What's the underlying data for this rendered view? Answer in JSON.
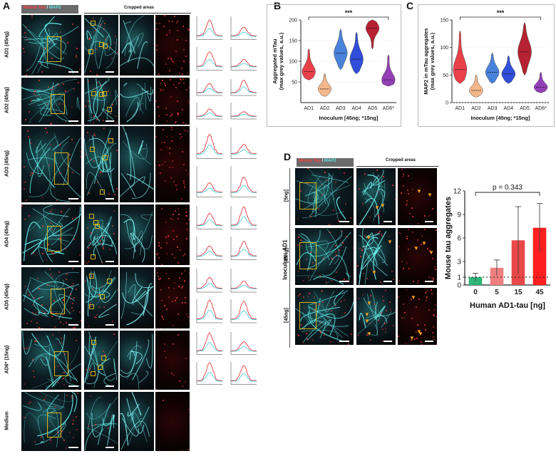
{
  "panels": {
    "A": "A",
    "B": "B",
    "C": "C",
    "D": "D"
  },
  "panelA": {
    "legend": {
      "red": "Mouse Tau",
      "sep": " / ",
      "cyan": "MAP2"
    },
    "cropped_header": "Cropped areas",
    "rows": [
      "AD1 (45ng)",
      "AD2 (45ng)",
      "AD3 (45ng)",
      "AD4 (45ng)",
      "AD5 (45ng)",
      "AD6* (15ng)",
      "Medium"
    ]
  },
  "panelD": {
    "legend": {
      "red": "Mouse Tau",
      "sep": " / ",
      "cyan": "MAP2"
    },
    "cropped_header": "Cropped areas",
    "group_label": "Inoculum: AD1",
    "rows": [
      "[5ng]",
      "[15ng]",
      "[45ng]"
    ]
  },
  "colors": {
    "red": "#e8303a",
    "orange": "#f4b183",
    "blue1": "#3a78d8",
    "blue2": "#1f3fd6",
    "darkred": "#b01020",
    "purple": "#8a2fb0",
    "cyan": "#5fe6e6",
    "green": "#2db57a"
  },
  "chart_data": [
    {
      "type": "violin",
      "ylabel": "Aggregated mTau\n(max grey values, a.u.)",
      "xlabel": "Inoculum [45ng; *15ng]",
      "categories": [
        "AD1",
        "AD2",
        "AD3",
        "AD4",
        "AD5",
        "AD6*"
      ],
      "medians": [
        75,
        33,
        120,
        105,
        180,
        55
      ],
      "ranges": [
        [
          55,
          130
        ],
        [
          15,
          70
        ],
        [
          80,
          178
        ],
        [
          70,
          170
        ],
        [
          130,
          200
        ],
        [
          40,
          115
        ]
      ],
      "ylim": [
        0,
        200
      ],
      "yticks": [
        50,
        100,
        150,
        200
      ],
      "significance": "***"
    },
    {
      "type": "violin",
      "ylabel": "MAP2 in mTau aggregates\n(max grey values, a.u.)",
      "xlabel": "Inoculum [45ng; *15ng]",
      "categories": [
        "AD1",
        "AD2",
        "AD3",
        "AD4",
        "AD5",
        "AD6*"
      ],
      "medians": [
        60,
        22,
        55,
        52,
        92,
        28
      ],
      "ranges": [
        [
          35,
          130
        ],
        [
          10,
          50
        ],
        [
          35,
          90
        ],
        [
          35,
          85
        ],
        [
          50,
          145
        ],
        [
          18,
          55
        ]
      ],
      "ylim": [
        0,
        150
      ],
      "yticks": [
        0,
        50,
        100,
        150
      ],
      "significance": "***"
    },
    {
      "type": "bar",
      "ylabel": "Mouse tau aggregates",
      "xlabel": "Human AD1-tau [ng]",
      "categories": [
        "0",
        "5",
        "15",
        "45"
      ],
      "values": [
        1.0,
        2.2,
        5.7,
        7.3
      ],
      "errors": [
        0.5,
        1.0,
        4.3,
        3.1
      ],
      "ylim": [
        0,
        12
      ],
      "yticks": [
        "0",
        "1",
        "3",
        "6",
        "9",
        "12"
      ],
      "annotation": "p = 0.343",
      "baseline": 1
    }
  ]
}
